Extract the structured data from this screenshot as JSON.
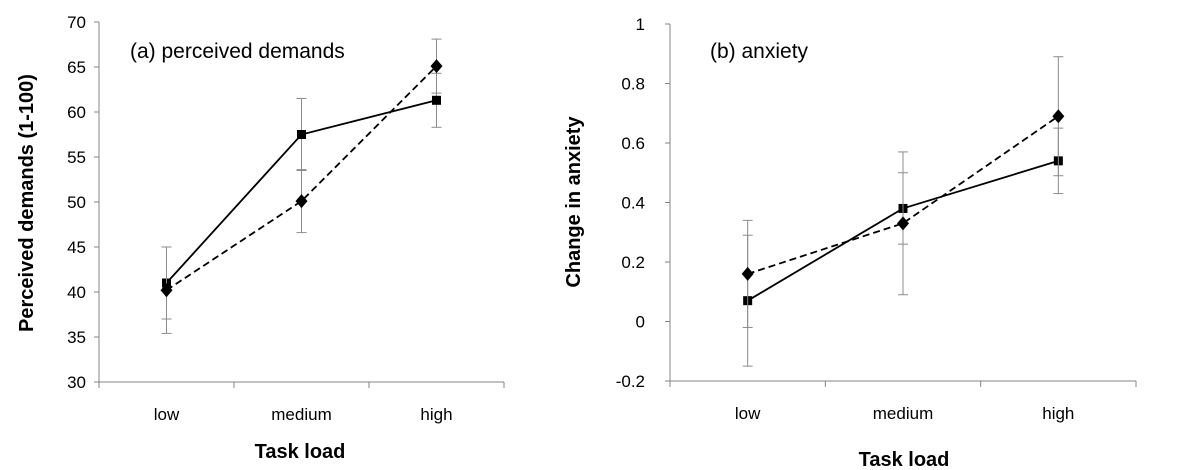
{
  "chart_data": [
    {
      "type": "line",
      "annotation": "(a) perceived demands",
      "xlabel": "Task load",
      "ylabel": "Perceived demands (1-100)",
      "categories": [
        "low",
        "medium",
        "high"
      ],
      "ylim": [
        30,
        70
      ],
      "ytick_values": [
        30,
        35,
        40,
        45,
        50,
        55,
        60,
        65,
        70
      ],
      "ytick_labels": [
        "30",
        "35",
        "40",
        "45",
        "50",
        "55",
        "60",
        "65",
        "70"
      ],
      "grid": false,
      "legend": "none",
      "series": [
        {
          "style": "solid",
          "marker": "square",
          "color": "#000000",
          "values": [
            41.0,
            57.5,
            61.3
          ],
          "errors": [
            4.0,
            4.0,
            3.0
          ]
        },
        {
          "style": "dashed",
          "marker": "diamond",
          "color": "#000000",
          "values": [
            40.2,
            50.1,
            65.1
          ],
          "errors": [
            4.8,
            3.5,
            3.0
          ]
        }
      ]
    },
    {
      "type": "line",
      "annotation": "(b) anxiety",
      "xlabel": "Task load",
      "ylabel": "Change in anxiety",
      "categories": [
        "low",
        "medium",
        "high"
      ],
      "ylim": [
        -0.2,
        1
      ],
      "ytick_values": [
        -0.2,
        0,
        0.2,
        0.4,
        0.6,
        0.8,
        1
      ],
      "ytick_labels": [
        "-0.2",
        "0",
        "0.2",
        "0.4",
        "0.6",
        "0.8",
        "1"
      ],
      "grid": false,
      "legend": "none",
      "series": [
        {
          "style": "solid",
          "marker": "square",
          "color": "#000000",
          "values": [
            0.07,
            0.38,
            0.54
          ],
          "errors": [
            0.22,
            0.12,
            0.11
          ]
        },
        {
          "style": "dashed",
          "marker": "diamond",
          "color": "#000000",
          "values": [
            0.16,
            0.33,
            0.69
          ],
          "errors": [
            0.18,
            0.24,
            0.2
          ]
        }
      ]
    }
  ]
}
